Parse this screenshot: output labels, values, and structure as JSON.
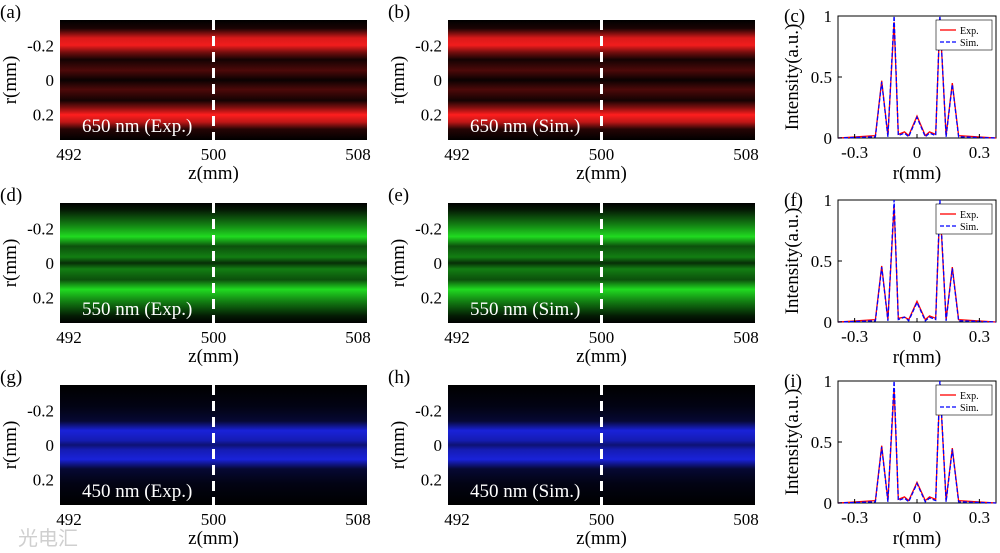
{
  "watermark": "光电汇",
  "heatmaps": [
    {
      "label": "(a)",
      "caption": "650 nm (Exp.)",
      "color": "#ff1e1e",
      "profile": "a"
    },
    {
      "label": "(b)",
      "caption": "650 nm (Sim.)",
      "color": "#ff1e1e",
      "profile": "a"
    },
    {
      "label": "(d)",
      "caption": "550 nm (Exp.)",
      "color": "#22e622",
      "profile": "b"
    },
    {
      "label": "(e)",
      "caption": "550 nm (Sim.)",
      "color": "#22e622",
      "profile": "b"
    },
    {
      "label": "(g)",
      "caption": "450 nm (Exp.)",
      "color": "#1e28ff",
      "profile": "c"
    },
    {
      "label": "(h)",
      "caption": "450 nm (Sim.)",
      "color": "#1e28ff",
      "profile": "c"
    }
  ],
  "heatmap_axes": {
    "xlabel": "z(mm)",
    "ylabel": "r(mm)",
    "xticks": [
      "492",
      "500",
      "508"
    ],
    "yticks": [
      "-0.2",
      "0",
      "0.2"
    ],
    "xlim": [
      491.5,
      508.5
    ],
    "ylim": [
      -0.35,
      0.35
    ]
  },
  "profile_axes": {
    "xlabel": "r(mm)",
    "ylabel": "Intensity(a.u.)",
    "xticks": [
      "-0.3",
      "0",
      "0.3"
    ],
    "yticks": [
      "0",
      "0.5",
      "1"
    ],
    "xlim": [
      -0.38,
      0.38
    ],
    "ylim": [
      0,
      1
    ]
  },
  "chart_data": [
    {
      "type": "line",
      "label": "(c)",
      "xlabel": "r(mm)",
      "ylabel": "Intensity(a.u.)",
      "legend": [
        "Exp.",
        "Sim."
      ],
      "series_colors": [
        "#ff0000",
        "#0000ff"
      ],
      "x": [
        -0.38,
        -0.2,
        -0.17,
        -0.14,
        -0.11,
        -0.09,
        -0.06,
        -0.04,
        0,
        0.04,
        0.06,
        0.09,
        0.11,
        0.14,
        0.17,
        0.2,
        0.38
      ],
      "series": [
        {
          "name": "Exp.",
          "values": [
            0,
            0.02,
            0.47,
            0.02,
            0.95,
            0.03,
            0.05,
            0.02,
            0.18,
            0.02,
            0.05,
            0.03,
            0.98,
            0.02,
            0.45,
            0.02,
            0
          ]
        },
        {
          "name": "Sim.",
          "values": [
            0,
            0.01,
            0.46,
            0.01,
            1.0,
            0.02,
            0.04,
            0.01,
            0.17,
            0.01,
            0.04,
            0.02,
            1.0,
            0.01,
            0.44,
            0.01,
            0
          ]
        }
      ]
    },
    {
      "type": "line",
      "label": "(f)",
      "xlabel": "r(mm)",
      "ylabel": "Intensity(a.u.)",
      "legend": [
        "Exp.",
        "Sim."
      ],
      "series_colors": [
        "#ff0000",
        "#0000ff"
      ],
      "x": [
        -0.38,
        -0.2,
        -0.17,
        -0.14,
        -0.11,
        -0.09,
        -0.06,
        -0.04,
        0,
        0.04,
        0.06,
        0.09,
        0.11,
        0.14,
        0.17,
        0.2,
        0.38
      ],
      "series": [
        {
          "name": "Exp.",
          "values": [
            0,
            0.02,
            0.46,
            0.02,
            0.95,
            0.03,
            0.04,
            0.02,
            0.17,
            0.02,
            0.05,
            0.03,
            0.96,
            0.02,
            0.45,
            0.02,
            0
          ]
        },
        {
          "name": "Sim.",
          "values": [
            0,
            0.01,
            0.45,
            0.01,
            1.0,
            0.02,
            0.04,
            0.01,
            0.16,
            0.01,
            0.04,
            0.02,
            1.0,
            0.01,
            0.44,
            0.01,
            0
          ]
        }
      ]
    },
    {
      "type": "line",
      "label": "(i)",
      "xlabel": "r(mm)",
      "ylabel": "Intensity(a.u.)",
      "legend": [
        "Exp.",
        "Sim."
      ],
      "series_colors": [
        "#ff0000",
        "#0000ff"
      ],
      "x": [
        -0.38,
        -0.2,
        -0.17,
        -0.14,
        -0.11,
        -0.09,
        -0.06,
        -0.04,
        0,
        0.04,
        0.06,
        0.09,
        0.11,
        0.14,
        0.17,
        0.2,
        0.38
      ],
      "series": [
        {
          "name": "Exp.",
          "values": [
            0,
            0.02,
            0.47,
            0.02,
            0.94,
            0.03,
            0.05,
            0.02,
            0.17,
            0.02,
            0.05,
            0.03,
            0.97,
            0.02,
            0.45,
            0.02,
            0
          ]
        },
        {
          "name": "Sim.",
          "values": [
            0,
            0.01,
            0.46,
            0.01,
            1.0,
            0.02,
            0.04,
            0.01,
            0.16,
            0.01,
            0.04,
            0.02,
            1.0,
            0.01,
            0.44,
            0.01,
            0
          ]
        }
      ]
    }
  ]
}
